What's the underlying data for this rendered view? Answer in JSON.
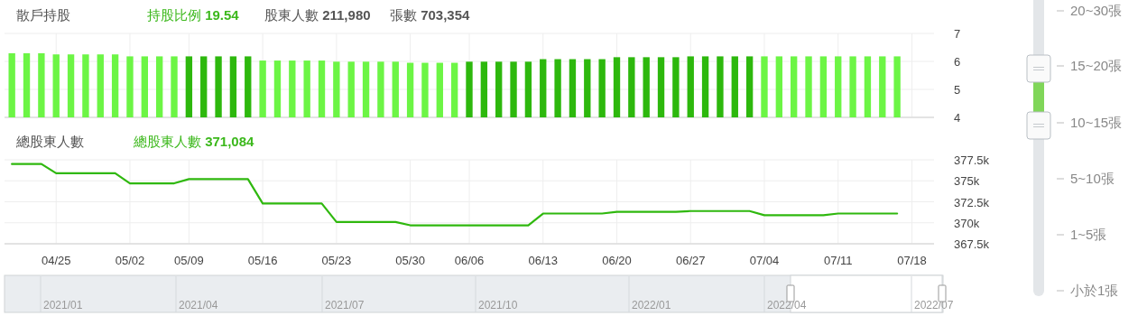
{
  "chart_data": [
    {
      "type": "bar",
      "title": "散戶持股",
      "annotations": [
        "持股比例 19.54",
        "股東人數 211,980",
        "張數 703,354"
      ],
      "categories": [
        null,
        null,
        null,
        null,
        null,
        null,
        null,
        null,
        null,
        null,
        null,
        null,
        null,
        null,
        null,
        null,
        null,
        null,
        null,
        null,
        null,
        null,
        null,
        null,
        null,
        null,
        null,
        null,
        null,
        null,
        null,
        null,
        null,
        null,
        null,
        null,
        null,
        null,
        null,
        null,
        null,
        null,
        null,
        null,
        null,
        null,
        null,
        null,
        null,
        null,
        null,
        null,
        null,
        null,
        null,
        null,
        null,
        null,
        null,
        null,
        null,
        null,
        null
      ],
      "values": [
        6.29,
        6.29,
        6.29,
        6.25,
        6.25,
        6.25,
        6.25,
        6.25,
        6.18,
        6.18,
        6.18,
        6.18,
        6.18,
        6.18,
        6.18,
        6.18,
        6.18,
        6.03,
        6.03,
        6.03,
        6.03,
        6.03,
        5.99,
        5.99,
        5.99,
        5.99,
        5.99,
        5.95,
        5.95,
        5.95,
        5.95,
        5.99,
        5.99,
        5.99,
        5.99,
        5.99,
        6.08,
        6.08,
        6.08,
        6.08,
        6.08,
        6.15,
        6.15,
        6.15,
        6.15,
        6.15,
        6.18,
        6.18,
        6.18,
        6.18,
        6.18,
        6.18,
        6.18,
        6.18,
        6.18,
        6.18,
        6.18,
        6.18,
        6.18,
        6.18,
        6.18,
        null,
        null
      ],
      "colors": [
        "#6cf545",
        "#6cf545",
        "#6cf545",
        "#6cf545",
        "#6cf545",
        "#6cf545",
        "#6cf545",
        "#6cf545",
        "#6cf545",
        "#6cf545",
        "#6cf545",
        "#6cf545",
        "#2db80d",
        "#2db80d",
        "#2db80d",
        "#2db80d",
        "#2db80d",
        "#6cf545",
        "#6cf545",
        "#6cf545",
        "#6cf545",
        "#6cf545",
        "#6cf545",
        "#6cf545",
        "#6cf545",
        "#6cf545",
        "#6cf545",
        "#6cf545",
        "#6cf545",
        "#6cf545",
        "#6cf545",
        "#2db80d",
        "#2db80d",
        "#2db80d",
        "#2db80d",
        "#2db80d",
        "#2db80d",
        "#2db80d",
        "#2db80d",
        "#2db80d",
        "#2db80d",
        "#2db80d",
        "#2db80d",
        "#2db80d",
        "#2db80d",
        "#2db80d",
        "#2db80d",
        "#2db80d",
        "#2db80d",
        "#2db80d",
        "#2db80d",
        "#6cf545",
        "#6cf545",
        "#6cf545",
        "#6cf545",
        "#6cf545",
        "#6cf545",
        "#6cf545",
        "#6cf545",
        "#6cf545",
        "#6cf545",
        null,
        null
      ],
      "ylim": [
        4,
        7
      ],
      "yticks": [
        4,
        5,
        6,
        7
      ],
      "grid": true
    },
    {
      "type": "line",
      "title": "總股東人數",
      "annotations": [
        "總股東人數 371,084"
      ],
      "categories": [
        null,
        null,
        null,
        "04/25",
        null,
        null,
        null,
        null,
        "05/02",
        null,
        null,
        null,
        "05/09",
        null,
        null,
        null,
        null,
        "05/16",
        null,
        null,
        null,
        null,
        "05/23",
        null,
        null,
        null,
        null,
        "05/30",
        null,
        null,
        null,
        "06/06",
        null,
        null,
        null,
        null,
        "06/13",
        null,
        null,
        null,
        null,
        "06/20",
        null,
        null,
        null,
        null,
        "06/27",
        null,
        null,
        null,
        null,
        "07/04",
        null,
        null,
        null,
        null,
        "07/11",
        null,
        null,
        null,
        null,
        "07/18",
        null
      ],
      "series": [
        {
          "color": "#2fb80e",
          "values": [
            377000,
            377000,
            377000,
            375900,
            375900,
            375900,
            375900,
            375900,
            374700,
            374700,
            374700,
            374700,
            375200,
            375200,
            375200,
            375200,
            375200,
            372300,
            372300,
            372300,
            372300,
            372300,
            370100,
            370100,
            370100,
            370100,
            370100,
            369700,
            369700,
            369700,
            369700,
            369700,
            369700,
            369700,
            369700,
            369700,
            371100,
            371100,
            371100,
            371100,
            371100,
            371300,
            371300,
            371300,
            371300,
            371300,
            371400,
            371400,
            371400,
            371400,
            371400,
            370900,
            370900,
            370900,
            370900,
            370900,
            371100,
            371100,
            371100,
            371100,
            371100,
            null,
            null
          ]
        }
      ],
      "ylim": [
        367500,
        377500
      ],
      "yticks": [
        {
          "value": 367500,
          "label": "367.5k"
        },
        {
          "value": 370000,
          "label": "370k"
        },
        {
          "value": 372500,
          "label": "372.5k"
        },
        {
          "value": 375000,
          "label": "375k"
        },
        {
          "value": 377500,
          "label": "377.5k"
        }
      ],
      "grid": true
    },
    {
      "type": "other",
      "annotations": [
        "2021/01",
        "2021/04",
        "2021/07",
        "2021/10",
        "2022/01",
        "2022/04",
        "2022/07"
      ]
    },
    {
      "type": "other",
      "annotations": [
        "20~30張",
        "15~20張",
        "10~15張",
        "5~10張",
        "1~5張",
        "小於1張"
      ]
    }
  ]
}
